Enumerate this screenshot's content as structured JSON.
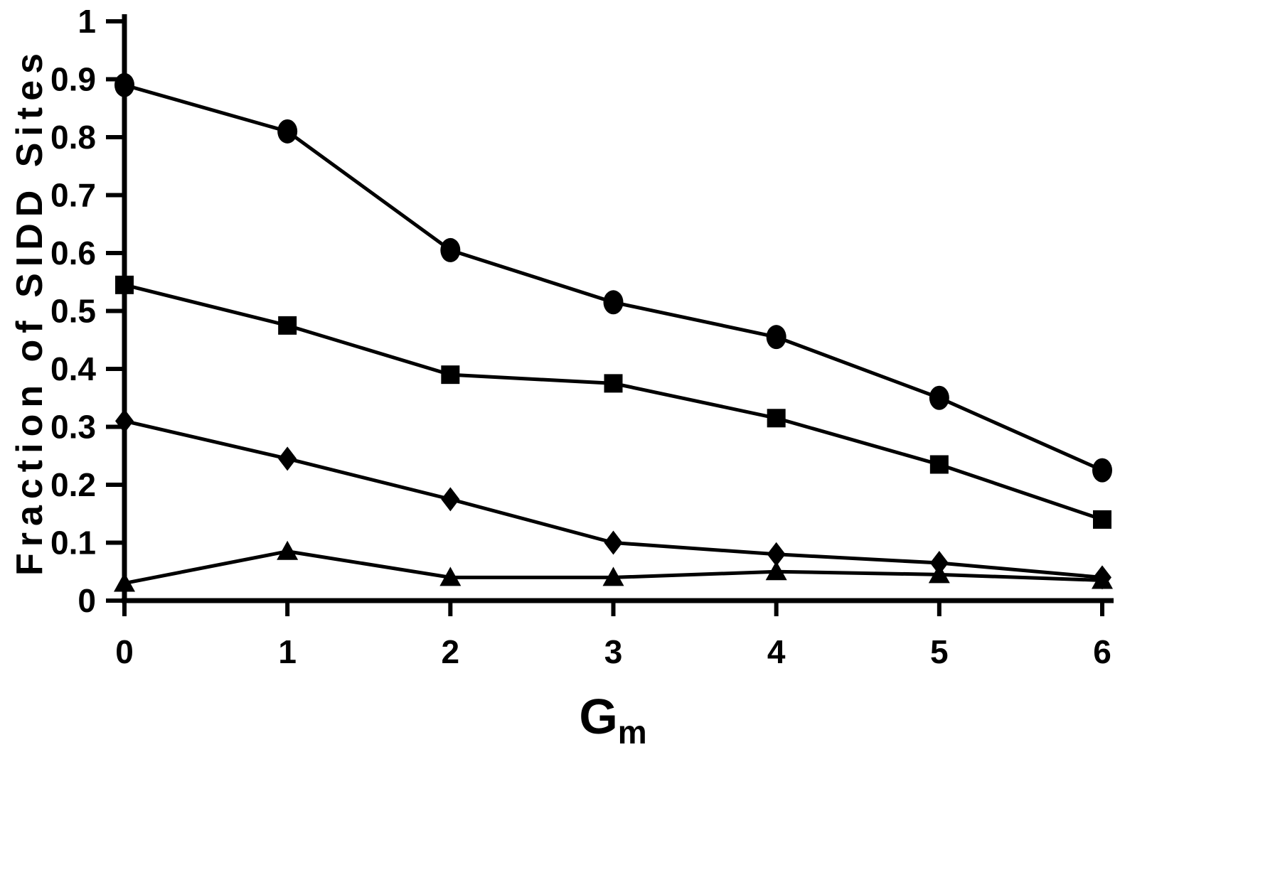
{
  "chart_data": {
    "type": "line",
    "title": "",
    "xlabel_main": "G",
    "xlabel_sub": "m",
    "ylabel": "Fraction of SIDD Sites",
    "x": [
      0,
      1,
      2,
      3,
      4,
      5,
      6
    ],
    "xlim": [
      0,
      6
    ],
    "ylim": [
      0,
      1
    ],
    "xticks": [
      0,
      1,
      2,
      3,
      4,
      5,
      6
    ],
    "xtick_labels": [
      "0",
      "1",
      "2",
      "3",
      "4",
      "5",
      "6"
    ],
    "yticks": [
      0,
      0.1,
      0.2,
      0.3,
      0.4,
      0.5,
      0.6,
      0.7,
      0.8,
      0.9,
      1
    ],
    "ytick_labels": [
      "0",
      "0.1",
      "0.2",
      "0.3",
      "0.4",
      "0.5",
      "0.6",
      "0.7",
      "0.8",
      "0.9",
      "1"
    ],
    "grid": false,
    "legend": "none",
    "line_color": "#000000",
    "marker_color": "#000000",
    "background_color": "#ffffff",
    "series": [
      {
        "name": "circle-series",
        "marker": "circle",
        "values": [
          0.89,
          0.81,
          0.605,
          0.515,
          0.455,
          0.35,
          0.225
        ]
      },
      {
        "name": "square-series",
        "marker": "square",
        "values": [
          0.545,
          0.475,
          0.39,
          0.375,
          0.315,
          0.235,
          0.14
        ]
      },
      {
        "name": "diamond-series",
        "marker": "diamond",
        "values": [
          0.31,
          0.245,
          0.175,
          0.1,
          0.08,
          0.065,
          0.04
        ]
      },
      {
        "name": "triangle-series",
        "marker": "triangle",
        "values": [
          0.03,
          0.085,
          0.04,
          0.04,
          0.05,
          0.045,
          0.035
        ]
      }
    ]
  }
}
